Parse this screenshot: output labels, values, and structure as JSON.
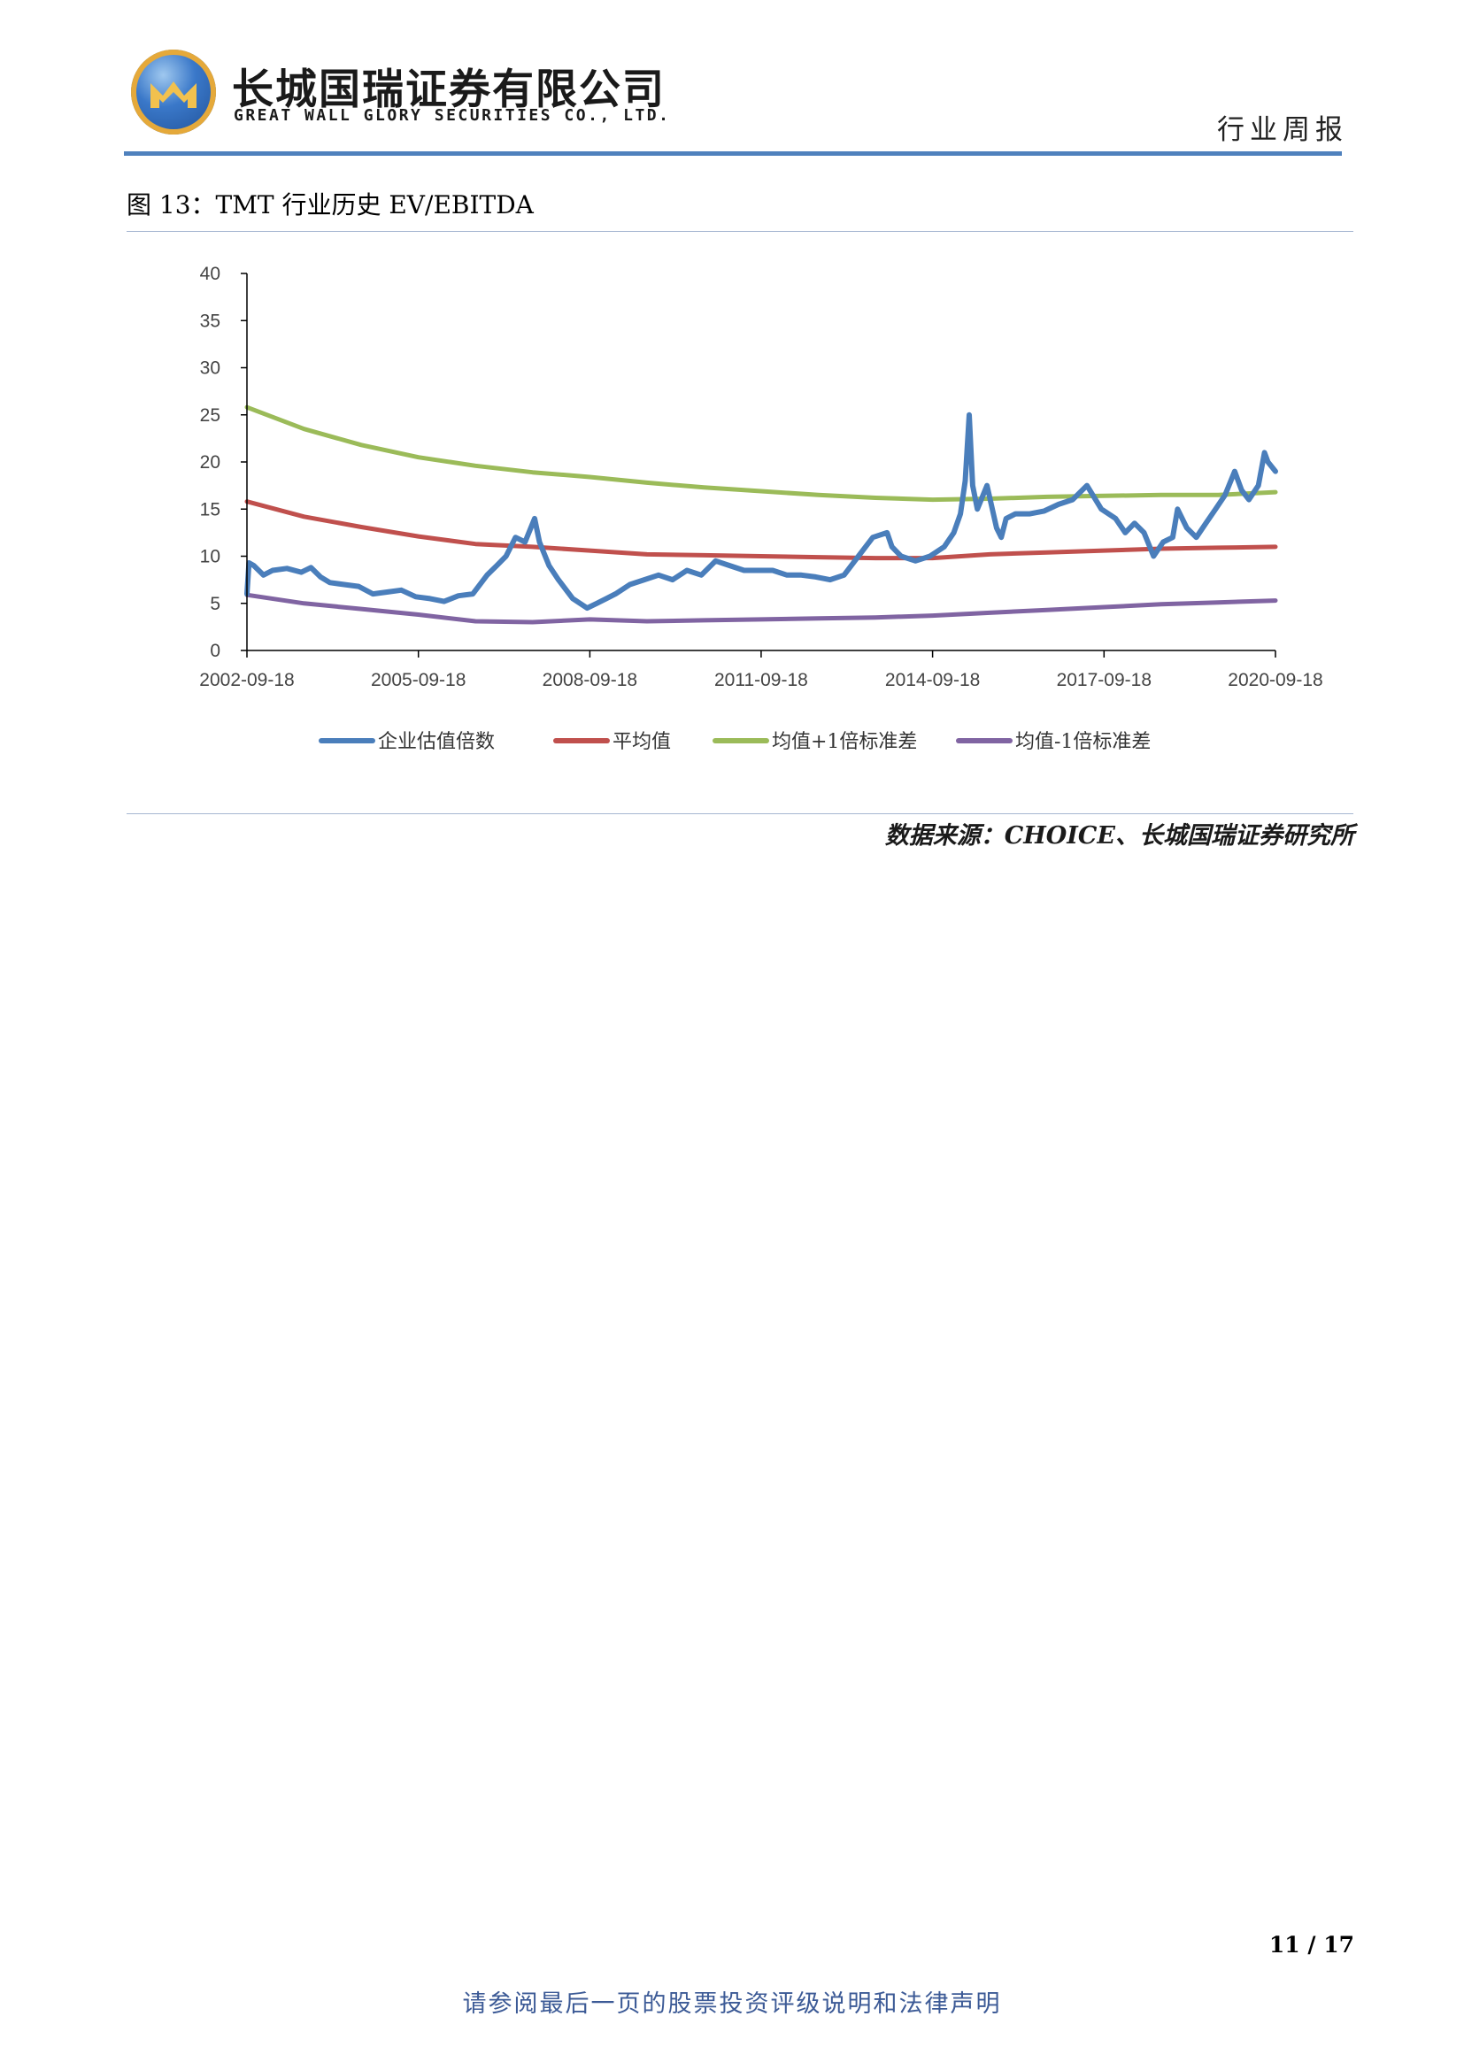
{
  "header": {
    "company_cn": "长城国瑞证券有限公司",
    "company_en": "GREAT WALL GLORY SECURITIES CO., LTD.",
    "doc_type": "行业周报",
    "accent_color": "#4f81bd"
  },
  "figure": {
    "title": "图 13：TMT 行业历史 EV/EBITDA",
    "source": "数据来源：CHOICE、长城国瑞证券研究所"
  },
  "chart_data": {
    "type": "line",
    "title": "",
    "xlabel": "",
    "ylabel": "",
    "ylim": [
      0,
      40
    ],
    "yticks": [
      0,
      5,
      10,
      15,
      20,
      25,
      30,
      35,
      40
    ],
    "xlim": [
      "2002-09-18",
      "2020-09-18"
    ],
    "xticks": [
      "2002-09-18",
      "2005-09-18",
      "2008-09-18",
      "2011-09-18",
      "2014-09-18",
      "2017-09-18",
      "2020-09-18"
    ],
    "grid": false,
    "legend_position": "bottom",
    "series": [
      {
        "name": "企业估值倍数",
        "color": "#4a7ebb",
        "x": [
          "2002-09-18",
          "2002-10-01",
          "2002-11-01",
          "2003-01-01",
          "2003-03-01",
          "2003-06-01",
          "2003-09-01",
          "2003-11-01",
          "2004-01-01",
          "2004-03-01",
          "2004-06-01",
          "2004-09-01",
          "2004-12-01",
          "2005-03-01",
          "2005-06-01",
          "2005-09-01",
          "2005-12-01",
          "2006-03-01",
          "2006-06-01",
          "2006-09-01",
          "2006-12-01",
          "2007-02-01",
          "2007-04-01",
          "2007-06-01",
          "2007-08-01",
          "2007-10-01",
          "2007-11-01",
          "2008-01-01",
          "2008-03-01",
          "2008-06-01",
          "2008-09-01",
          "2008-11-01",
          "2009-01-01",
          "2009-03-01",
          "2009-06-01",
          "2009-09-01",
          "2009-12-01",
          "2010-03-01",
          "2010-06-01",
          "2010-09-01",
          "2010-12-01",
          "2011-03-01",
          "2011-06-01",
          "2011-09-01",
          "2011-12-01",
          "2012-03-01",
          "2012-06-01",
          "2012-09-01",
          "2012-12-01",
          "2013-03-01",
          "2013-06-01",
          "2013-09-01",
          "2013-12-01",
          "2014-01-01",
          "2014-03-01",
          "2014-06-01",
          "2014-09-01",
          "2014-12-01",
          "2015-02-01",
          "2015-03-15",
          "2015-04-15",
          "2015-05-10",
          "2015-06-01",
          "2015-07-01",
          "2015-09-01",
          "2015-11-01",
          "2015-12-01",
          "2016-01-01",
          "2016-03-01",
          "2016-06-01",
          "2016-09-01",
          "2016-12-01",
          "2017-03-01",
          "2017-06-01",
          "2017-09-01",
          "2017-12-01",
          "2018-02-01",
          "2018-04-01",
          "2018-06-01",
          "2018-08-01",
          "2018-10-01",
          "2018-12-01",
          "2019-01-01",
          "2019-03-01",
          "2019-05-01",
          "2019-07-01",
          "2019-09-01",
          "2019-11-01",
          "2020-01-01",
          "2020-02-15",
          "2020-04-01",
          "2020-06-01",
          "2020-07-10",
          "2020-08-01",
          "2020-09-18"
        ],
        "values": [
          6.0,
          9.3,
          9.0,
          8.0,
          8.5,
          8.7,
          8.3,
          8.8,
          7.8,
          7.2,
          7.0,
          6.8,
          6.0,
          6.2,
          6.4,
          5.7,
          5.5,
          5.2,
          5.8,
          6.0,
          8.0,
          9.0,
          10.0,
          12.0,
          11.5,
          14.0,
          11.5,
          9.0,
          7.5,
          5.5,
          4.5,
          5.0,
          5.5,
          6.0,
          7.0,
          7.5,
          8.0,
          7.5,
          8.5,
          8.0,
          9.5,
          9.0,
          8.5,
          8.5,
          8.5,
          8.0,
          8.0,
          7.8,
          7.5,
          8.0,
          10.0,
          12.0,
          12.5,
          11.0,
          10.0,
          9.5,
          10.0,
          11.0,
          12.5,
          14.5,
          18.0,
          25.0,
          17.5,
          15.0,
          17.5,
          13.0,
          12.0,
          14.0,
          14.5,
          14.5,
          14.8,
          15.5,
          16.0,
          17.5,
          15.0,
          14.0,
          12.5,
          13.5,
          12.5,
          10.0,
          11.5,
          12.0,
          15.0,
          13.0,
          12.0,
          13.5,
          15.0,
          16.5,
          19.0,
          17.0,
          16.0,
          17.5,
          21.0,
          20.0,
          19.0
        ]
      },
      {
        "name": "平均值",
        "color": "#c0504d",
        "x": [
          "2002-09-18",
          "2003-09-18",
          "2004-09-18",
          "2005-09-18",
          "2006-09-18",
          "2007-09-18",
          "2008-09-18",
          "2009-09-18",
          "2010-09-18",
          "2011-09-18",
          "2012-09-18",
          "2013-09-18",
          "2014-09-18",
          "2015-09-18",
          "2016-09-18",
          "2017-09-18",
          "2018-09-18",
          "2019-09-18",
          "2020-09-18"
        ],
        "values": [
          15.8,
          14.2,
          13.1,
          12.1,
          11.3,
          11.0,
          10.6,
          10.2,
          10.1,
          10.0,
          9.9,
          9.8,
          9.8,
          10.2,
          10.4,
          10.6,
          10.8,
          10.9,
          11.0
        ]
      },
      {
        "name": "均值+1倍标准差",
        "color": "#9bbb59",
        "x": [
          "2002-09-18",
          "2003-09-18",
          "2004-09-18",
          "2005-09-18",
          "2006-09-18",
          "2007-09-18",
          "2008-09-18",
          "2009-09-18",
          "2010-09-18",
          "2011-09-18",
          "2012-09-18",
          "2013-09-18",
          "2014-09-18",
          "2015-09-18",
          "2016-09-18",
          "2017-09-18",
          "2018-09-18",
          "2019-09-18",
          "2020-09-18"
        ],
        "values": [
          25.8,
          23.5,
          21.8,
          20.5,
          19.6,
          18.9,
          18.4,
          17.8,
          17.3,
          16.9,
          16.5,
          16.2,
          16.0,
          16.1,
          16.3,
          16.4,
          16.5,
          16.5,
          16.8
        ]
      },
      {
        "name": "均值-1倍标准差",
        "color": "#8064a2",
        "x": [
          "2002-09-18",
          "2003-09-18",
          "2004-09-18",
          "2005-09-18",
          "2006-09-18",
          "2007-09-18",
          "2008-09-18",
          "2009-09-18",
          "2010-09-18",
          "2011-09-18",
          "2012-09-18",
          "2013-09-18",
          "2014-09-18",
          "2015-09-18",
          "2016-09-18",
          "2017-09-18",
          "2018-09-18",
          "2019-09-18",
          "2020-09-18"
        ],
        "values": [
          5.9,
          5.0,
          4.4,
          3.8,
          3.1,
          3.0,
          3.3,
          3.1,
          3.2,
          3.3,
          3.4,
          3.5,
          3.7,
          4.0,
          4.3,
          4.6,
          4.9,
          5.1,
          5.3
        ]
      }
    ]
  },
  "footer": {
    "page_current": "11",
    "page_sep": "/",
    "page_total": "17",
    "disclaimer": "请参阅最后一页的股票投资评级说明和法律声明"
  }
}
